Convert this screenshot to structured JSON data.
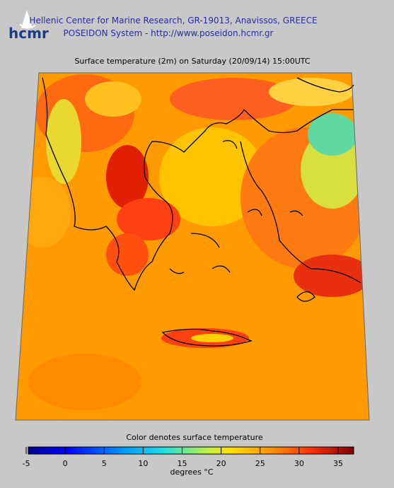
{
  "header": {
    "logo": "hcmr",
    "line1": "Hellenic Center for Marine Research, GR-19013, Anavissos, GREECE",
    "line2": "POSEIDON System - http://www.poseidon.hcmr.gr"
  },
  "map": {
    "title": "Surface temperature (2m) on Saturday (20/09/14) 15:00UTC"
  },
  "colorbar": {
    "title": "Color denotes surface temperature",
    "clim": [
      -5,
      37
    ],
    "ticks": [
      -5,
      0,
      5,
      10,
      15,
      20,
      25,
      30,
      35
    ],
    "unit_label": "degrees °C"
  }
}
